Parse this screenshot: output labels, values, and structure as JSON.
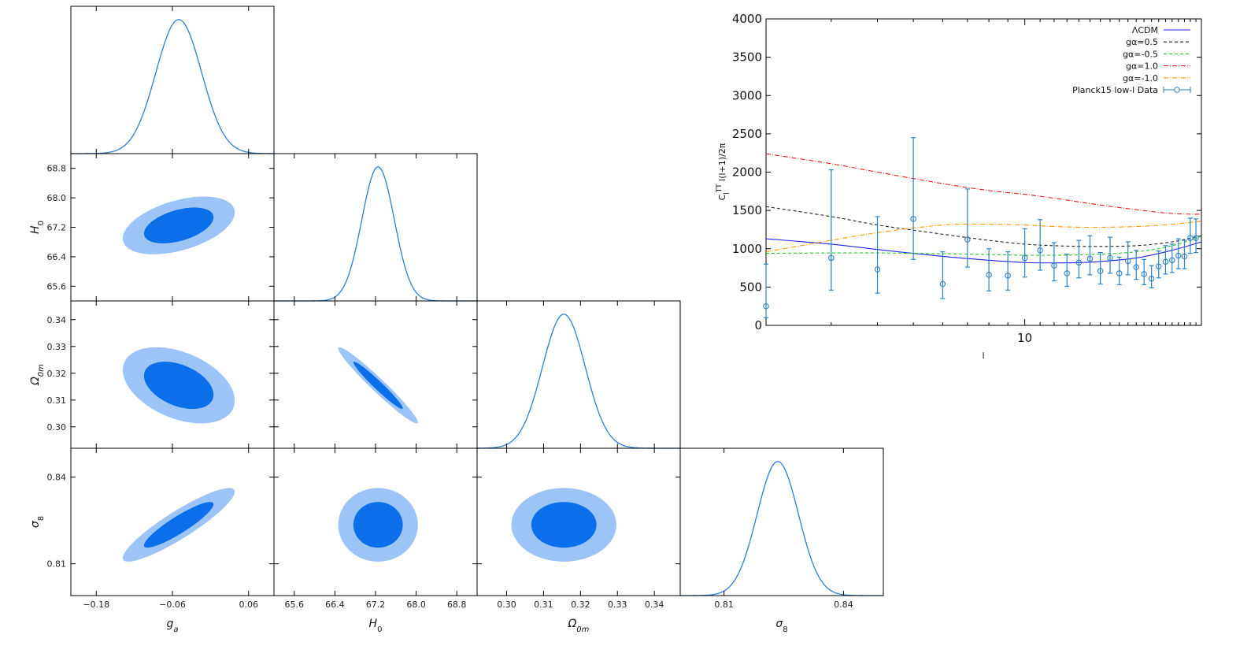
{
  "chart_data": [
    {
      "type": "triangle-posterior",
      "parameters": [
        {
          "name": "g",
          "sub": "a",
          "italic_sub": true,
          "mean": -0.05,
          "sigma": 0.036,
          "range": [
            -0.22,
            0.1
          ],
          "ticks": [
            -0.18,
            -0.06,
            0.06
          ],
          "tick_labels": [
            "−0.18",
            "−0.06",
            "0.06"
          ]
        },
        {
          "name": "H",
          "sub": "0",
          "italic_sub": false,
          "mean": 67.25,
          "sigma": 0.32,
          "range": [
            65.2,
            69.2
          ],
          "ticks": [
            65.6,
            66.4,
            67.2,
            68.0,
            68.8
          ],
          "tick_labels": [
            "65.6",
            "66.4",
            "67.2",
            "68.0",
            "68.8"
          ]
        },
        {
          "name": "Ω",
          "sub": "0m",
          "italic_sub": true,
          "mean": 0.3155,
          "sigma": 0.0058,
          "range": [
            0.292,
            0.347
          ],
          "ticks": [
            0.3,
            0.31,
            0.32,
            0.33,
            0.34
          ],
          "tick_labels": [
            "0.30",
            "0.31",
            "0.32",
            "0.33",
            "0.34"
          ]
        },
        {
          "name": "σ",
          "sub": "8",
          "italic_sub": false,
          "mean": 0.8235,
          "sigma": 0.0052,
          "range": [
            0.799,
            0.85
          ],
          "ticks": [
            0.81,
            0.84
          ],
          "tick_labels": [
            "0.81",
            "0.84"
          ]
        }
      ],
      "correlations": [
        {
          "pair": [
            "g_a",
            "H_0"
          ],
          "rho": 0.45
        },
        {
          "pair": [
            "g_a",
            "Omega_0m"
          ],
          "rho": -0.4
        },
        {
          "pair": [
            "H_0",
            "Omega_0m"
          ],
          "rho": -0.97
        },
        {
          "pair": [
            "g_a",
            "sigma_8"
          ],
          "rho": 0.9
        },
        {
          "pair": [
            "H_0",
            "sigma_8"
          ],
          "rho": 0.0
        },
        {
          "pair": [
            "Omega_0m",
            "sigma_8"
          ],
          "rho": 0.0
        }
      ],
      "contour_levels": [
        "68%",
        "95%"
      ],
      "colors": {
        "inner": "#0a6fe8",
        "outer": "#9dc4f6",
        "line": "#2b7fd6"
      }
    },
    {
      "type": "line",
      "xscale": "log",
      "xlim": [
        2,
        30
      ],
      "ylim": [
        0,
        4000
      ],
      "xlabel": "l",
      "ylabel": "C_l^TT l(l+1)/2π",
      "yticks": [
        0,
        500,
        1000,
        1500,
        2000,
        2500,
        3000,
        3500,
        4000
      ],
      "xticks": [
        10
      ],
      "legend_position": "top-right",
      "series": [
        {
          "name": "ΛCDM",
          "color": "#2222ee",
          "dash": "",
          "x": [
            2,
            3,
            4,
            6,
            8,
            10,
            12,
            15,
            20,
            25,
            30
          ],
          "y": [
            1130,
            1060,
            990,
            900,
            850,
            820,
            815,
            825,
            880,
            980,
            1090
          ]
        },
        {
          "name": "gα=0.5",
          "color": "#222222",
          "dash": "4,3",
          "x": [
            2,
            3,
            4,
            6,
            8,
            10,
            12,
            15,
            20,
            25,
            30
          ],
          "y": [
            1550,
            1420,
            1310,
            1190,
            1110,
            1060,
            1040,
            1030,
            1040,
            1090,
            1170
          ]
        },
        {
          "name": "gα=-0.5",
          "color": "#22cc22",
          "dash": "4,3",
          "x": [
            2,
            3,
            4,
            6,
            8,
            10,
            12,
            15,
            20,
            25,
            30
          ],
          "y": [
            940,
            945,
            945,
            935,
            925,
            915,
            915,
            925,
            960,
            1040,
            1160
          ]
        },
        {
          "name": "gα=1.0",
          "color": "#e02020",
          "dash": "6,2,1,2",
          "x": [
            2,
            3,
            4,
            6,
            8,
            10,
            12,
            15,
            20,
            25,
            30
          ],
          "y": [
            2240,
            2110,
            2000,
            1850,
            1760,
            1710,
            1660,
            1590,
            1510,
            1460,
            1450
          ]
        },
        {
          "name": "gα=-1.0",
          "color": "#ff9900",
          "dash": "6,2,1,2",
          "x": [
            2,
            3,
            4,
            6,
            8,
            10,
            12,
            15,
            20,
            25,
            30
          ],
          "y": [
            960,
            1110,
            1210,
            1310,
            1320,
            1310,
            1290,
            1280,
            1290,
            1320,
            1360
          ]
        }
      ],
      "errorbars": {
        "name": "Planck15 low-l Data",
        "color": "#2a83c4",
        "points": [
          {
            "x": 2,
            "y": 250,
            "lo": 100,
            "hi": 800
          },
          {
            "x": 3,
            "y": 880,
            "lo": 460,
            "hi": 2030
          },
          {
            "x": 4,
            "y": 730,
            "lo": 420,
            "hi": 1420
          },
          {
            "x": 5,
            "y": 1390,
            "lo": 860,
            "hi": 2450
          },
          {
            "x": 6,
            "y": 540,
            "lo": 350,
            "hi": 960
          },
          {
            "x": 7,
            "y": 1120,
            "lo": 760,
            "hi": 1780
          },
          {
            "x": 8,
            "y": 660,
            "lo": 450,
            "hi": 1000
          },
          {
            "x": 9,
            "y": 650,
            "lo": 460,
            "hi": 960
          },
          {
            "x": 10,
            "y": 880,
            "lo": 630,
            "hi": 1260
          },
          {
            "x": 11,
            "y": 980,
            "lo": 720,
            "hi": 1380
          },
          {
            "x": 12,
            "y": 780,
            "lo": 580,
            "hi": 1080
          },
          {
            "x": 13,
            "y": 680,
            "lo": 510,
            "hi": 930
          },
          {
            "x": 14,
            "y": 820,
            "lo": 620,
            "hi": 1110
          },
          {
            "x": 15,
            "y": 870,
            "lo": 660,
            "hi": 1170
          },
          {
            "x": 16,
            "y": 710,
            "lo": 540,
            "hi": 950
          },
          {
            "x": 17,
            "y": 880,
            "lo": 680,
            "hi": 1150
          },
          {
            "x": 18,
            "y": 680,
            "lo": 530,
            "hi": 890
          },
          {
            "x": 19,
            "y": 840,
            "lo": 660,
            "hi": 1090
          },
          {
            "x": 20,
            "y": 760,
            "lo": 600,
            "hi": 980
          },
          {
            "x": 21,
            "y": 670,
            "lo": 530,
            "hi": 860
          },
          {
            "x": 22,
            "y": 610,
            "lo": 490,
            "hi": 780
          },
          {
            "x": 23,
            "y": 770,
            "lo": 620,
            "hi": 970
          },
          {
            "x": 24,
            "y": 830,
            "lo": 670,
            "hi": 1040
          },
          {
            "x": 25,
            "y": 850,
            "lo": 690,
            "hi": 1060
          },
          {
            "x": 26,
            "y": 910,
            "lo": 740,
            "hi": 1130
          },
          {
            "x": 27,
            "y": 900,
            "lo": 740,
            "hi": 1110
          },
          {
            "x": 28,
            "y": 1140,
            "lo": 940,
            "hi": 1400
          },
          {
            "x": 29,
            "y": 1140,
            "lo": 950,
            "hi": 1390
          }
        ]
      }
    }
  ]
}
